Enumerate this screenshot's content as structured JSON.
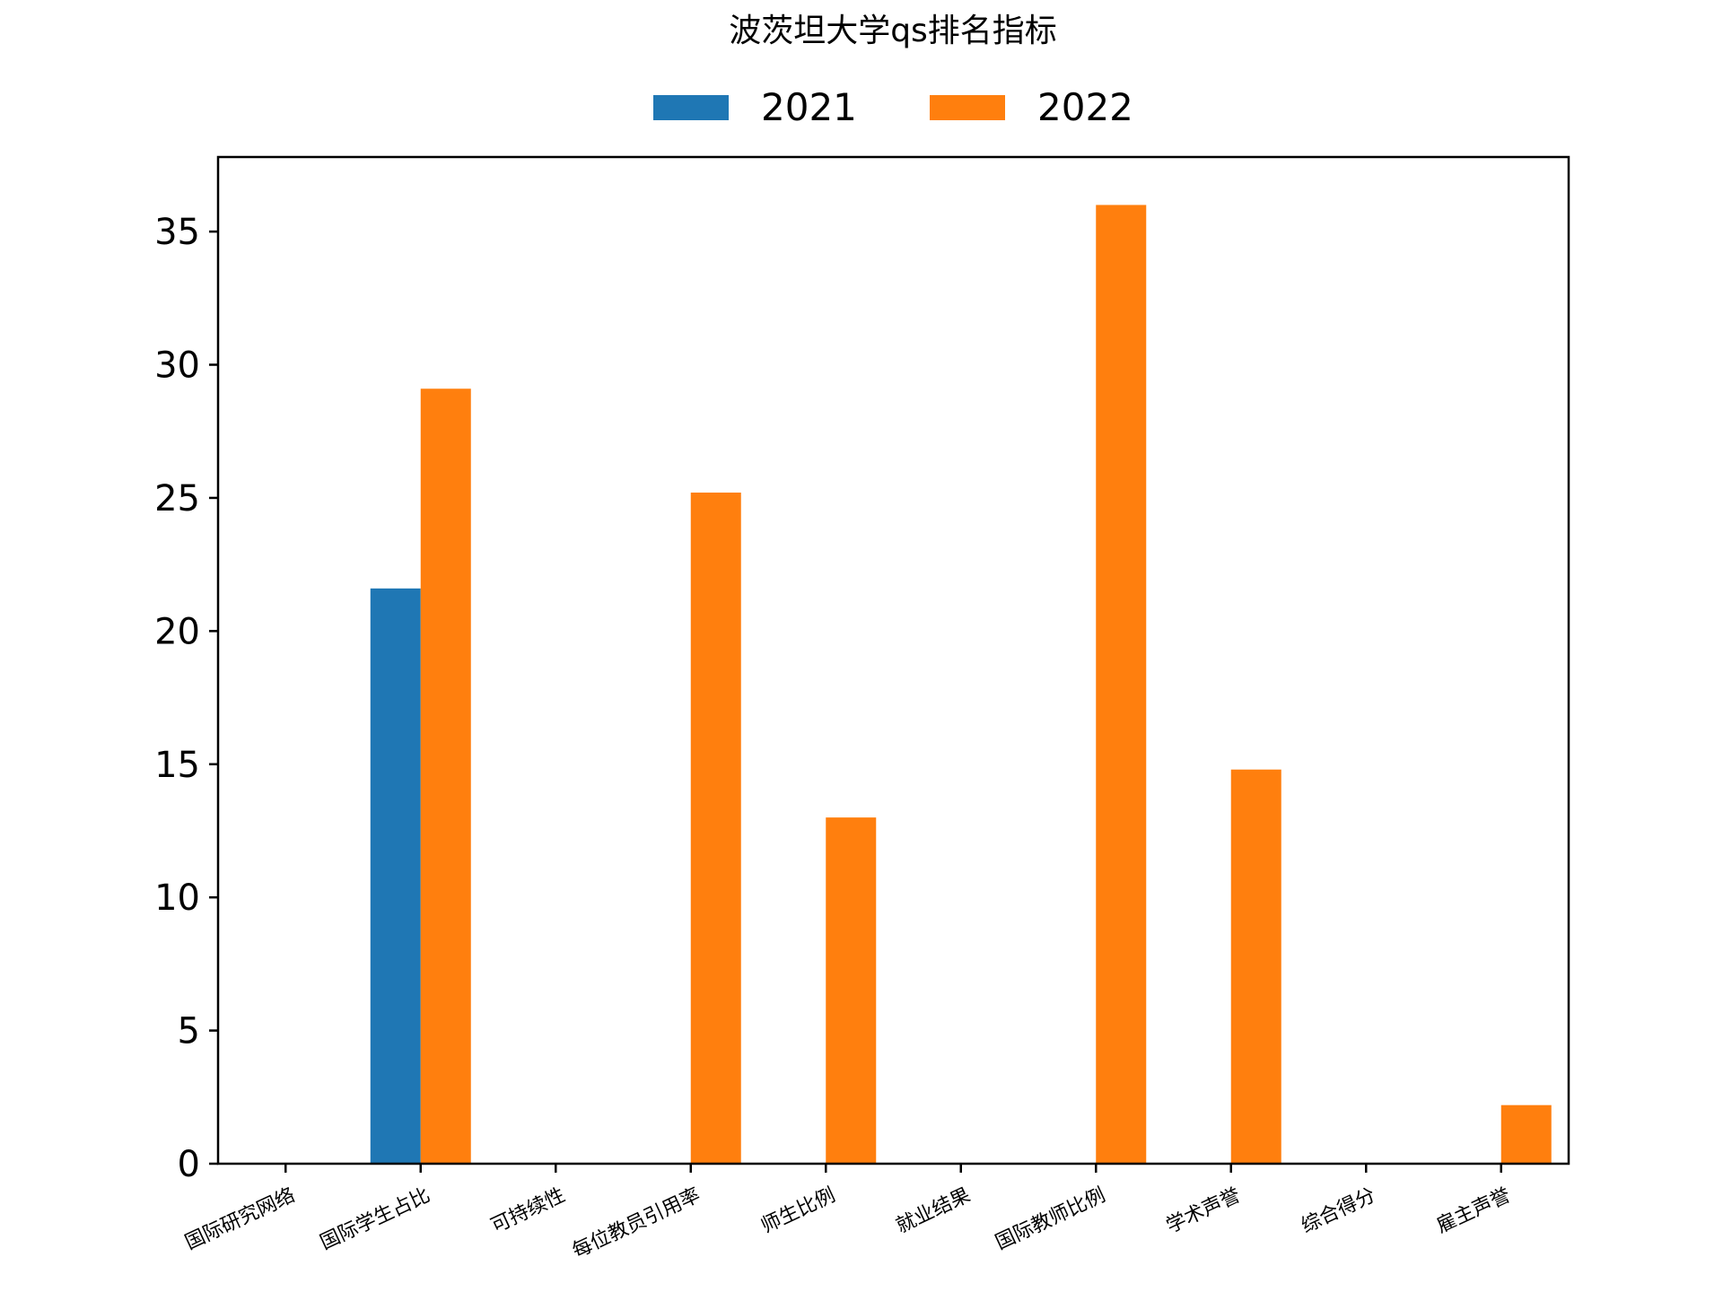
{
  "chart_data": {
    "type": "bar",
    "title": "波茨坦大学qs排名指标",
    "xlabel": "",
    "ylabel": "",
    "categories": [
      "国际研究网络",
      "国际学生占比",
      "可持续性",
      "每位教员引用率",
      "师生比例",
      "就业结果",
      "国际教师比例",
      "学术声誉",
      "综合得分",
      "雇主声誉"
    ],
    "series": [
      {
        "name": "2021",
        "color": "#1f77b4",
        "values": [
          0,
          21.6,
          0,
          0,
          0,
          0,
          0,
          0,
          0,
          0
        ]
      },
      {
        "name": "2022",
        "color": "#ff7f0e",
        "values": [
          0,
          29.1,
          0,
          25.2,
          13.0,
          0,
          36.0,
          14.8,
          0,
          2.2
        ]
      }
    ],
    "ylim": [
      0,
      37.8
    ],
    "yticks": [
      0,
      5,
      10,
      15,
      20,
      25,
      30,
      35
    ],
    "legend": "top-center",
    "grid": false
  }
}
